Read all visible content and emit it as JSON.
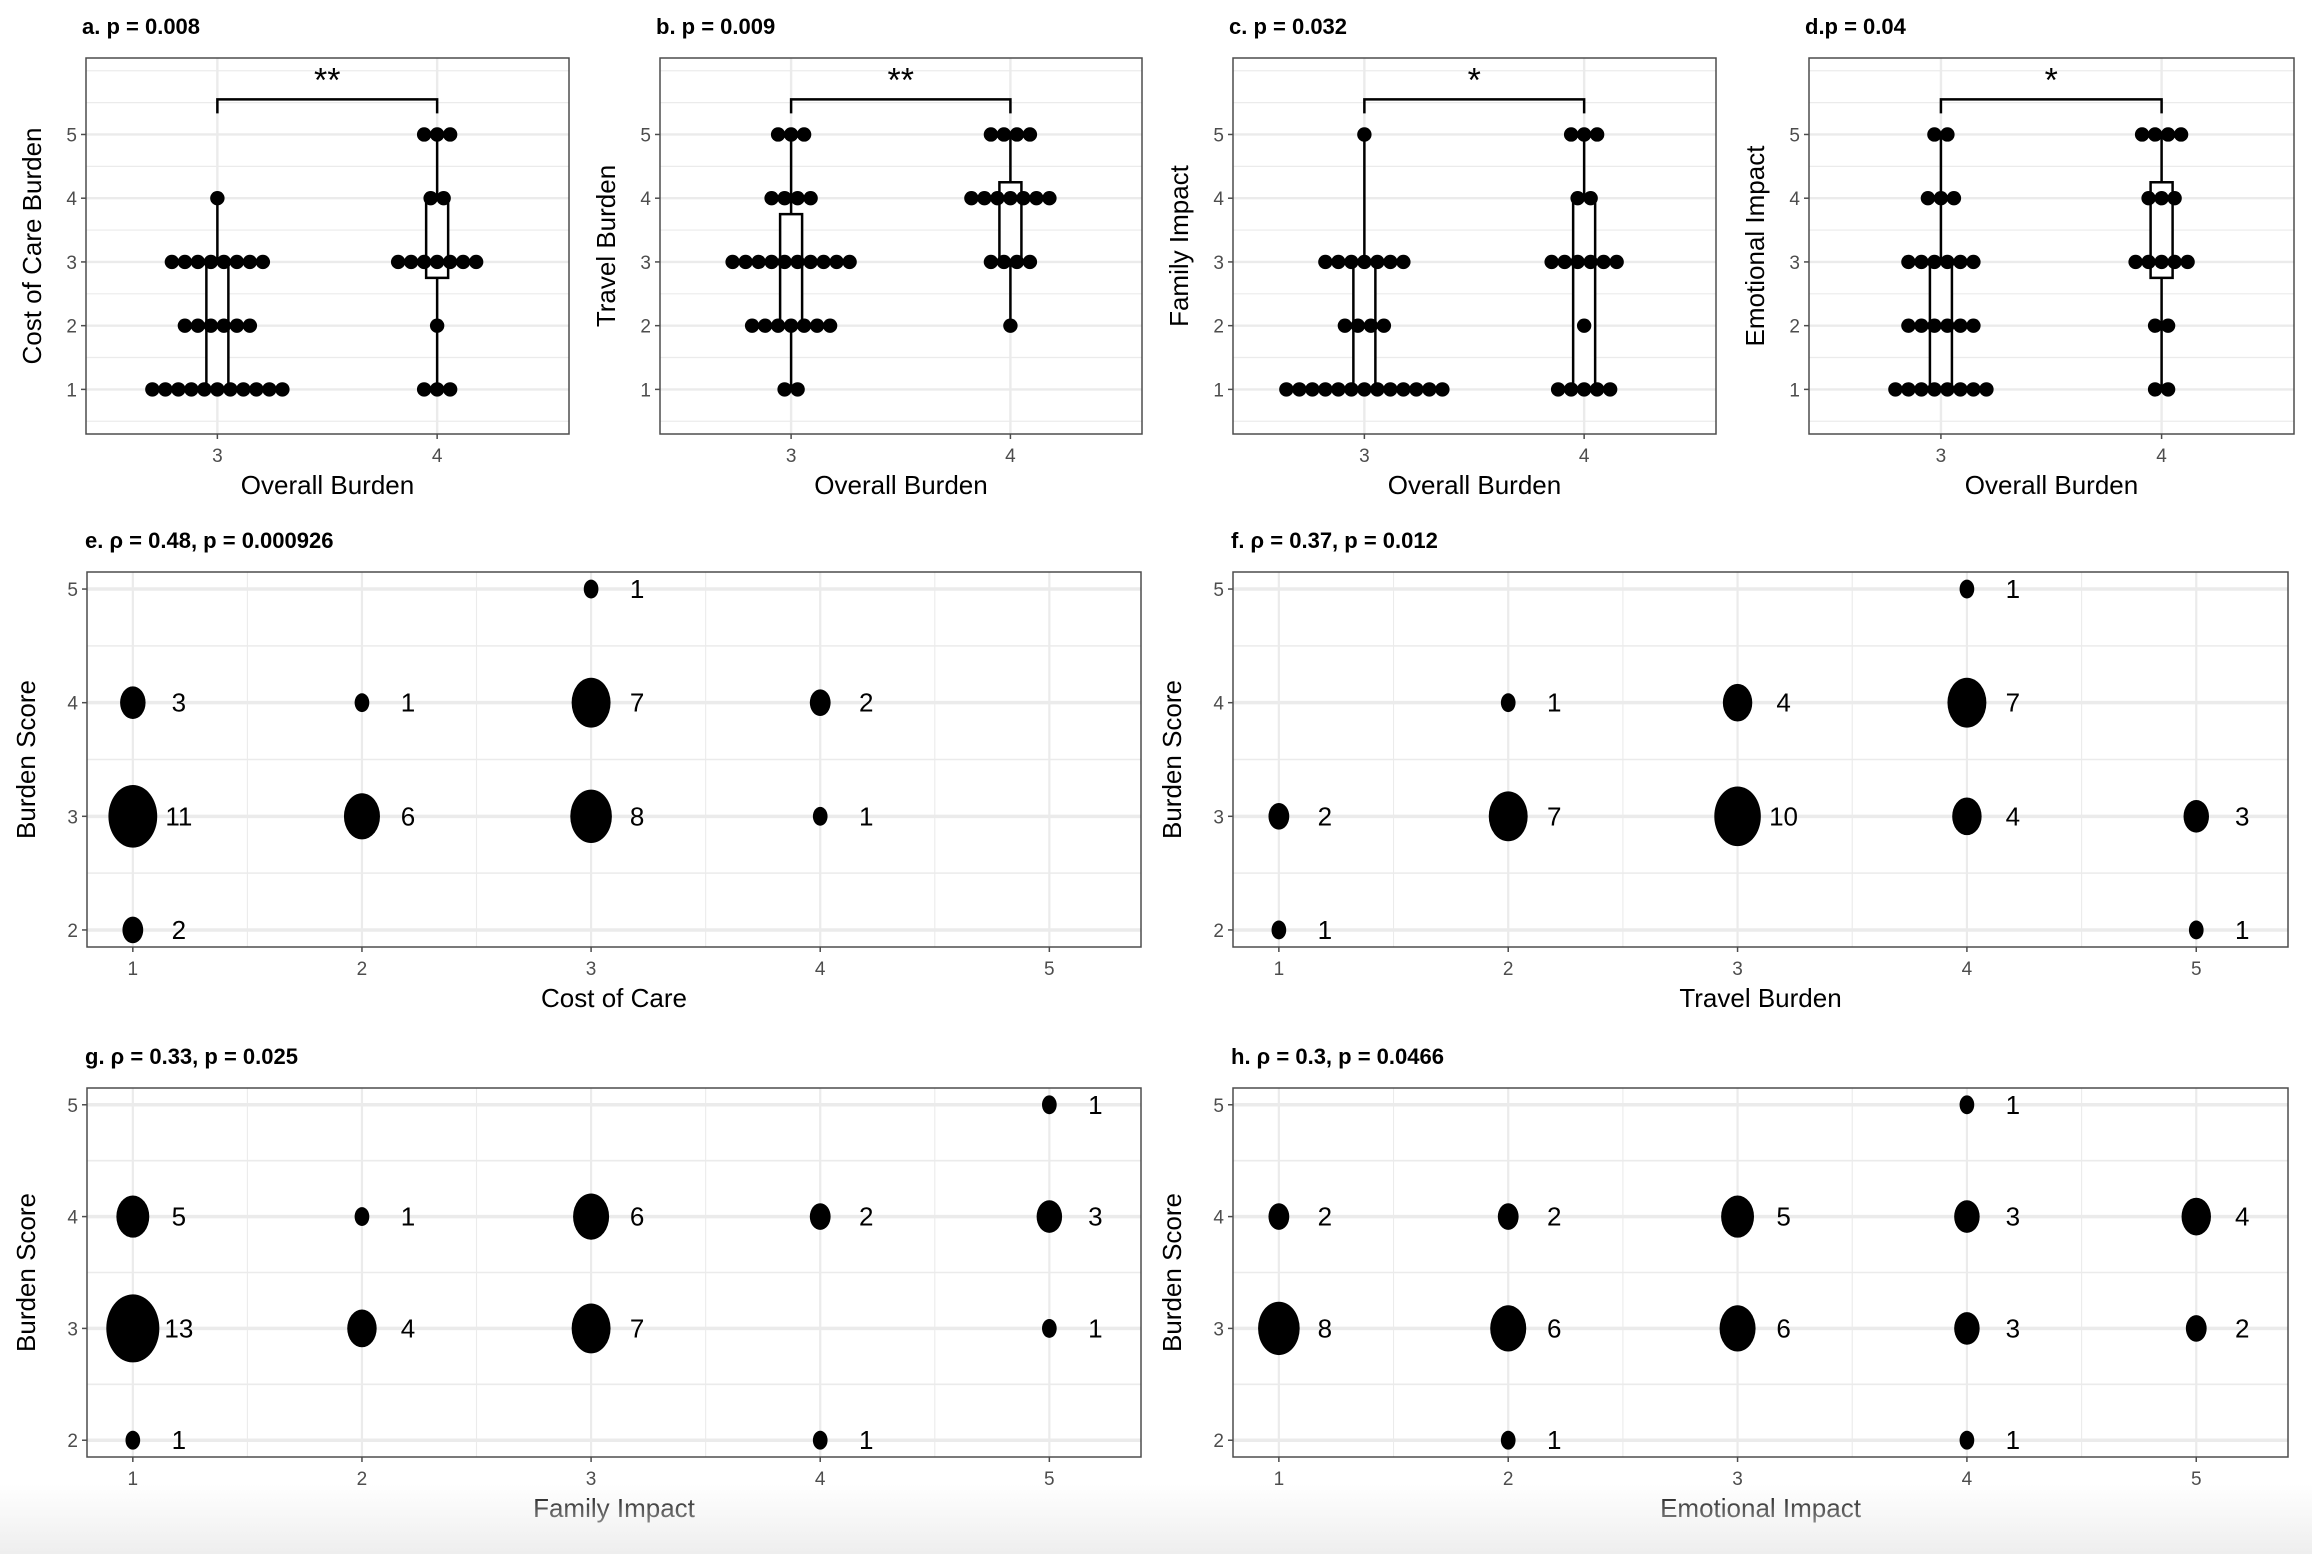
{
  "chart_data": [
    {
      "id": "a",
      "type": "box_dot",
      "title": "a.  p = 0.008",
      "xlabel": "Overall Burden",
      "ylabel": "Cost of Care Burden",
      "categories": [
        "3",
        "4"
      ],
      "yticks": [
        1,
        2,
        3,
        4,
        5
      ],
      "ylim": [
        0.3,
        6.2
      ],
      "significance": "**",
      "groups": [
        {
          "x": "3",
          "counts": {
            "1": 11,
            "2": 6,
            "3": 8,
            "4": 1,
            "5": 0
          },
          "box": {
            "q1": 1,
            "median": 2,
            "q3": 3,
            "lower": 1,
            "upper": 4
          }
        },
        {
          "x": "4",
          "counts": {
            "1": 3,
            "2": 1,
            "3": 7,
            "4": 2,
            "5": 3
          },
          "box": {
            "q1": 2.75,
            "median": 3,
            "q3": 4,
            "lower": 1,
            "upper": 5
          }
        }
      ]
    },
    {
      "id": "b",
      "type": "box_dot",
      "title": "b. p = 0.009",
      "xlabel": "Overall Burden",
      "ylabel": "Travel Burden",
      "categories": [
        "3",
        "4"
      ],
      "yticks": [
        1,
        2,
        3,
        4,
        5
      ],
      "ylim": [
        0.3,
        6.2
      ],
      "significance": "**",
      "groups": [
        {
          "x": "3",
          "counts": {
            "1": 2,
            "2": 7,
            "3": 10,
            "4": 4,
            "5": 3
          },
          "box": {
            "q1": 2,
            "median": 3,
            "q3": 3.75,
            "lower": 1,
            "upper": 5
          }
        },
        {
          "x": "4",
          "counts": {
            "1": 0,
            "2": 1,
            "3": 4,
            "4": 7,
            "5": 4
          },
          "box": {
            "q1": 3,
            "median": 4,
            "q3": 4.25,
            "lower": 2,
            "upper": 5
          }
        }
      ]
    },
    {
      "id": "c",
      "type": "box_dot",
      "title": "c. p = 0.032",
      "xlabel": "Overall Burden",
      "ylabel": "Family Impact",
      "categories": [
        "3",
        "4"
      ],
      "yticks": [
        1,
        2,
        3,
        4,
        5
      ],
      "ylim": [
        0.3,
        6.2
      ],
      "significance": "*",
      "groups": [
        {
          "x": "3",
          "counts": {
            "1": 13,
            "2": 4,
            "3": 7,
            "4": 0,
            "5": 1
          },
          "box": {
            "q1": 1,
            "median": 1,
            "q3": 3,
            "lower": 1,
            "upper": 5
          }
        },
        {
          "x": "4",
          "counts": {
            "1": 5,
            "2": 1,
            "3": 6,
            "4": 2,
            "5": 3
          },
          "box": {
            "q1": 1,
            "median": 3,
            "q3": 4,
            "lower": 1,
            "upper": 5
          }
        }
      ]
    },
    {
      "id": "d",
      "type": "box_dot",
      "title": "d.p = 0.04",
      "xlabel": "Overall Burden",
      "ylabel": "Emotional Impact",
      "categories": [
        "3",
        "4"
      ],
      "yticks": [
        1,
        2,
        3,
        4,
        5
      ],
      "ylim": [
        0.3,
        6.2
      ],
      "significance": "*",
      "groups": [
        {
          "x": "3",
          "counts": {
            "1": 8,
            "2": 6,
            "3": 6,
            "4": 3,
            "5": 2
          },
          "box": {
            "q1": 1,
            "median": 2,
            "q3": 3,
            "lower": 1,
            "upper": 5
          }
        },
        {
          "x": "4",
          "counts": {
            "1": 2,
            "2": 2,
            "3": 5,
            "4": 3,
            "5": 4
          },
          "box": {
            "q1": 2.75,
            "median": 3,
            "q3": 4.25,
            "lower": 1,
            "upper": 5
          }
        }
      ]
    },
    {
      "id": "e",
      "type": "scatter",
      "title": "e. ρ = 0.48, p = 0.000926",
      "xlabel": "Cost of Care",
      "ylabel": "Burden Score",
      "xticks": [
        1,
        2,
        3,
        4,
        5
      ],
      "yticks": [
        2,
        3,
        4,
        5
      ],
      "xlim": [
        0.8,
        5.4
      ],
      "ylim": [
        1.85,
        5.15
      ],
      "points": [
        {
          "x": 1,
          "y": 4,
          "n": 3
        },
        {
          "x": 1,
          "y": 3,
          "n": 11
        },
        {
          "x": 1,
          "y": 2,
          "n": 2
        },
        {
          "x": 2,
          "y": 4,
          "n": 1
        },
        {
          "x": 2,
          "y": 3,
          "n": 6
        },
        {
          "x": 3,
          "y": 5,
          "n": 1
        },
        {
          "x": 3,
          "y": 4,
          "n": 7
        },
        {
          "x": 3,
          "y": 3,
          "n": 8
        },
        {
          "x": 4,
          "y": 4,
          "n": 2
        },
        {
          "x": 4,
          "y": 3,
          "n": 1
        }
      ]
    },
    {
      "id": "f",
      "type": "scatter",
      "title": "f. ρ = 0.37, p = 0.012",
      "xlabel": "Travel Burden",
      "ylabel": "Burden Score",
      "xticks": [
        1,
        2,
        3,
        4,
        5
      ],
      "yticks": [
        2,
        3,
        4,
        5
      ],
      "xlim": [
        0.8,
        5.4
      ],
      "ylim": [
        1.85,
        5.15
      ],
      "points": [
        {
          "x": 1,
          "y": 3,
          "n": 2
        },
        {
          "x": 1,
          "y": 2,
          "n": 1
        },
        {
          "x": 2,
          "y": 4,
          "n": 1
        },
        {
          "x": 2,
          "y": 3,
          "n": 7
        },
        {
          "x": 3,
          "y": 4,
          "n": 4
        },
        {
          "x": 3,
          "y": 3,
          "n": 10
        },
        {
          "x": 4,
          "y": 5,
          "n": 1
        },
        {
          "x": 4,
          "y": 4,
          "n": 7
        },
        {
          "x": 4,
          "y": 3,
          "n": 4
        },
        {
          "x": 5,
          "y": 3,
          "n": 3
        },
        {
          "x": 5,
          "y": 2,
          "n": 1
        }
      ]
    },
    {
      "id": "g",
      "type": "scatter",
      "title": "g. ρ = 0.33, p = 0.025",
      "xlabel": "Family Impact",
      "ylabel": "Burden Score",
      "xticks": [
        1,
        2,
        3,
        4,
        5
      ],
      "yticks": [
        2,
        3,
        4,
        5
      ],
      "xlim": [
        0.8,
        5.4
      ],
      "ylim": [
        1.85,
        5.15
      ],
      "points": [
        {
          "x": 1,
          "y": 4,
          "n": 5
        },
        {
          "x": 1,
          "y": 3,
          "n": 13
        },
        {
          "x": 1,
          "y": 2,
          "n": 1
        },
        {
          "x": 2,
          "y": 4,
          "n": 1
        },
        {
          "x": 2,
          "y": 3,
          "n": 4
        },
        {
          "x": 3,
          "y": 4,
          "n": 6
        },
        {
          "x": 3,
          "y": 3,
          "n": 7
        },
        {
          "x": 4,
          "y": 4,
          "n": 2
        },
        {
          "x": 4,
          "y": 2,
          "n": 1
        },
        {
          "x": 5,
          "y": 5,
          "n": 1
        },
        {
          "x": 5,
          "y": 4,
          "n": 3
        },
        {
          "x": 5,
          "y": 3,
          "n": 1
        }
      ]
    },
    {
      "id": "h",
      "type": "scatter",
      "title": "h. ρ = 0.3, p = 0.0466",
      "xlabel": "Emotional Impact",
      "ylabel": "Burden Score",
      "xticks": [
        1,
        2,
        3,
        4,
        5
      ],
      "yticks": [
        2,
        3,
        4,
        5
      ],
      "xlim": [
        0.8,
        5.4
      ],
      "ylim": [
        1.85,
        5.15
      ],
      "points": [
        {
          "x": 1,
          "y": 4,
          "n": 2
        },
        {
          "x": 1,
          "y": 3,
          "n": 8
        },
        {
          "x": 2,
          "y": 4,
          "n": 2
        },
        {
          "x": 2,
          "y": 3,
          "n": 6
        },
        {
          "x": 2,
          "y": 2,
          "n": 1
        },
        {
          "x": 3,
          "y": 4,
          "n": 5
        },
        {
          "x": 3,
          "y": 3,
          "n": 6
        },
        {
          "x": 4,
          "y": 5,
          "n": 1
        },
        {
          "x": 4,
          "y": 4,
          "n": 3
        },
        {
          "x": 4,
          "y": 3,
          "n": 3
        },
        {
          "x": 4,
          "y": 2,
          "n": 1
        },
        {
          "x": 5,
          "y": 4,
          "n": 4
        },
        {
          "x": 5,
          "y": 3,
          "n": 2
        }
      ]
    }
  ]
}
